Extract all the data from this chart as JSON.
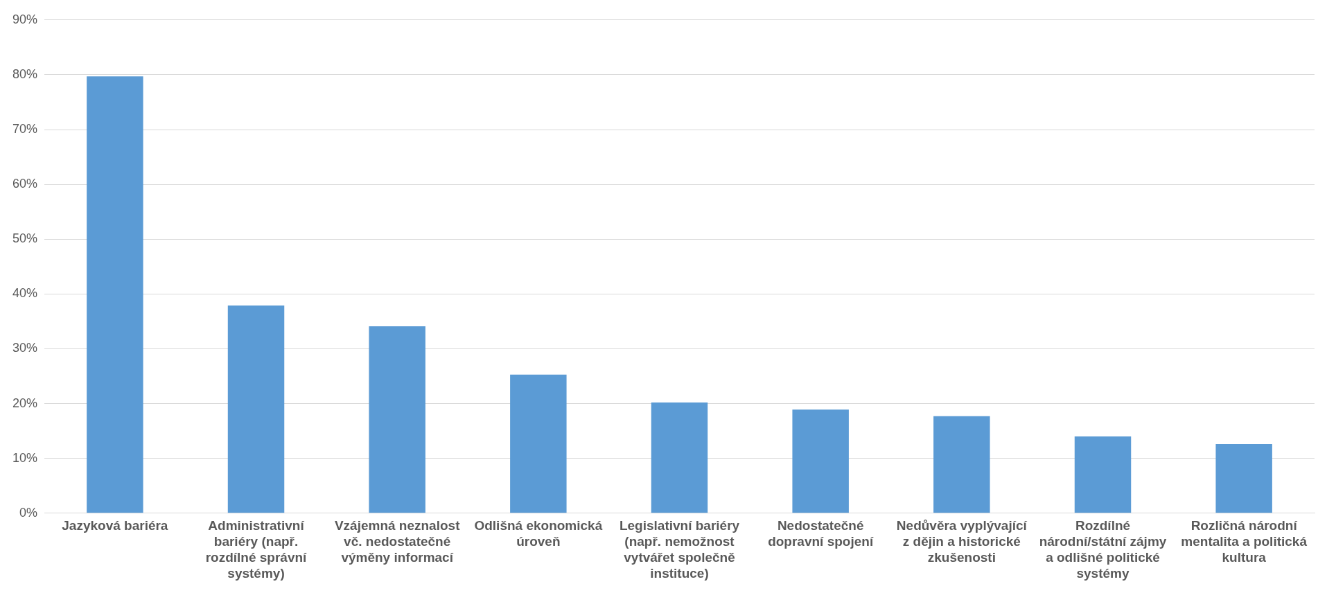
{
  "chart_data": {
    "type": "bar",
    "categories": [
      "Jazyková bariéra",
      "Administrativní bariéry (např. rozdílné správní systémy)",
      "Vzájemná neznalost vč. nedostatečné výměny informací",
      "Odlišná ekonomická úroveň",
      "Legislativní bariéry (např. nemožnost vytvářet společně instituce)",
      "Nedostatečné dopravní spojení",
      "Nedůvěra vyplývající z dějin a historické zkušenosti",
      "Rozdílné národní/státní zájmy a odlišné politické systémy",
      "Rozličná národní mentalita a politická kultura"
    ],
    "values": [
      79.7,
      37.9,
      34.1,
      25.3,
      20.2,
      18.9,
      17.7,
      14.0,
      12.6
    ],
    "color": "#5b9bd5",
    "ylim": [
      0,
      90
    ],
    "yticks": [
      {
        "value": 0,
        "label": "0%"
      },
      {
        "value": 10,
        "label": "10%"
      },
      {
        "value": 20,
        "label": "20%"
      },
      {
        "value": 30,
        "label": "30%"
      },
      {
        "value": 40,
        "label": "40%"
      },
      {
        "value": 50,
        "label": "50%"
      },
      {
        "value": 60,
        "label": "60%"
      },
      {
        "value": 70,
        "label": "70%"
      },
      {
        "value": 80,
        "label": "80%"
      },
      {
        "value": 90,
        "label": "90%"
      }
    ],
    "grid": "y",
    "legend": false
  }
}
